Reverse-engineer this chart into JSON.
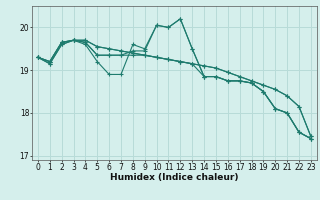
{
  "title": "",
  "xlabel": "Humidex (Indice chaleur)",
  "bg_color": "#d5efec",
  "grid_color": "#b8dbd8",
  "line_color": "#1e7b6e",
  "xlim": [
    -0.5,
    23.5
  ],
  "ylim": [
    16.9,
    20.5
  ],
  "xticks": [
    0,
    1,
    2,
    3,
    4,
    5,
    6,
    7,
    8,
    9,
    10,
    11,
    12,
    13,
    14,
    15,
    16,
    17,
    18,
    19,
    20,
    21,
    22,
    23
  ],
  "yticks": [
    17,
    18,
    19,
    20
  ],
  "series": [
    [
      19.3,
      19.2,
      19.65,
      19.7,
      19.6,
      19.2,
      18.9,
      18.9,
      19.6,
      19.5,
      20.05,
      20.0,
      20.2,
      19.5,
      18.85,
      18.85,
      18.75,
      18.75,
      18.7,
      18.5,
      18.1,
      18.0,
      17.55,
      17.4
    ],
    [
      19.3,
      19.2,
      19.65,
      19.7,
      19.7,
      19.55,
      19.5,
      19.45,
      19.4,
      19.35,
      19.3,
      19.25,
      19.2,
      19.15,
      19.1,
      19.05,
      18.95,
      18.85,
      18.75,
      18.65,
      18.55,
      18.4,
      18.15,
      17.45
    ],
    [
      19.3,
      19.2,
      19.65,
      19.7,
      19.7,
      19.55,
      19.5,
      19.45,
      19.4,
      19.35,
      19.3,
      19.25,
      19.2,
      19.15,
      19.1,
      19.05,
      18.95,
      18.85,
      18.75,
      18.65,
      18.55,
      18.4,
      18.15,
      17.45
    ],
    [
      19.3,
      19.15,
      19.6,
      19.7,
      19.65,
      19.35,
      19.35,
      19.35,
      19.35,
      19.35,
      19.3,
      19.25,
      19.2,
      19.15,
      18.85,
      18.85,
      18.75,
      18.75,
      18.7,
      18.5,
      18.1,
      18.0,
      17.55,
      17.4
    ],
    [
      19.3,
      19.15,
      19.6,
      19.7,
      19.65,
      19.35,
      19.35,
      19.35,
      19.45,
      19.45,
      20.05,
      20.0,
      20.2,
      19.5,
      18.85,
      18.85,
      18.75,
      18.75,
      18.7,
      18.5,
      18.1,
      18.0,
      17.55,
      17.4
    ]
  ]
}
